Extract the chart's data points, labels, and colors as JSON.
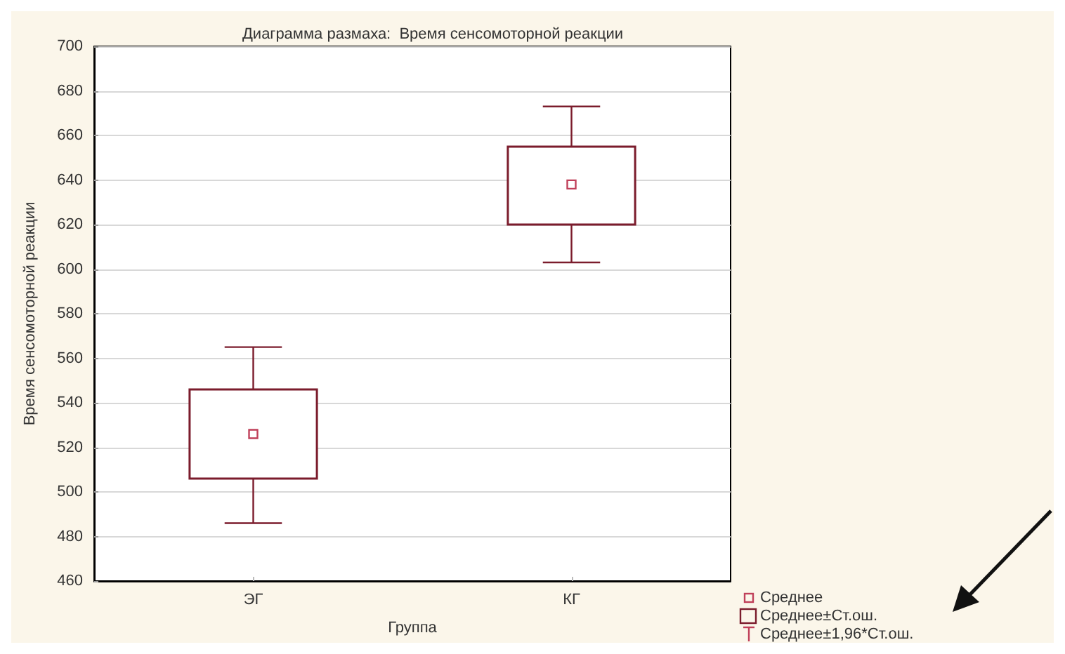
{
  "chart_data": {
    "type": "box",
    "title": "Диаграмма размаха:  Время сенсомоторной реакции",
    "xlabel": "Группа",
    "ylabel": "Время сенсомоторной реакции",
    "categories": [
      "ЭГ",
      "КГ"
    ],
    "series": [
      {
        "name": "Среднее±Ст.ош.",
        "color": "#7b1c2c",
        "boxes": [
          {
            "low": 486,
            "q1": 506,
            "median": 526,
            "q3": 546,
            "high": 565
          },
          {
            "low": 603,
            "q1": 620,
            "median": 638,
            "q3": 655,
            "high": 673
          }
        ]
      }
    ],
    "annotations": [
      "Среднее",
      "Среднее±1,96*Ст.ош."
    ],
    "ylim": [
      460,
      700
    ],
    "yticks": [
      460,
      480,
      500,
      520,
      540,
      560,
      580,
      600,
      620,
      640,
      660,
      680,
      700
    ],
    "grid": "y",
    "legend": "bottom right",
    "marker": "square"
  }
}
